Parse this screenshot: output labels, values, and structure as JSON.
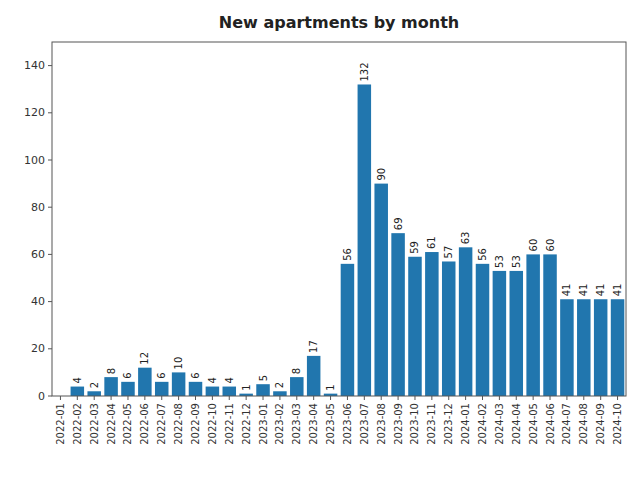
{
  "chart_data": {
    "type": "bar",
    "title": "New apartments by month",
    "categories": [
      "2022-01",
      "2022-02",
      "2022-03",
      "2022-04",
      "2022-05",
      "2022-06",
      "2022-07",
      "2022-08",
      "2022-09",
      "2022-10",
      "2022-11",
      "2022-12",
      "2023-01",
      "2023-02",
      "2023-03",
      "2023-04",
      "2023-05",
      "2023-06",
      "2023-07",
      "2023-08",
      "2023-09",
      "2023-10",
      "2023-11",
      "2023-12",
      "2024-01",
      "2024-02",
      "2024-03",
      "2024-04",
      "2024-05",
      "2024-06",
      "2024-07",
      "2024-08",
      "2024-09",
      "2024-10"
    ],
    "values": [
      0,
      4,
      2,
      8,
      6,
      12,
      6,
      10,
      6,
      4,
      4,
      1,
      5,
      2,
      8,
      17,
      1,
      56,
      132,
      90,
      69,
      59,
      61,
      57,
      63,
      56,
      53,
      53,
      60,
      60,
      41,
      41,
      41,
      41
    ],
    "color": "#2176ae",
    "ylim": [
      0,
      150
    ],
    "yticks": [
      0,
      20,
      40,
      60,
      80,
      100,
      120,
      140
    ],
    "data_labels": true,
    "grid": false
  }
}
